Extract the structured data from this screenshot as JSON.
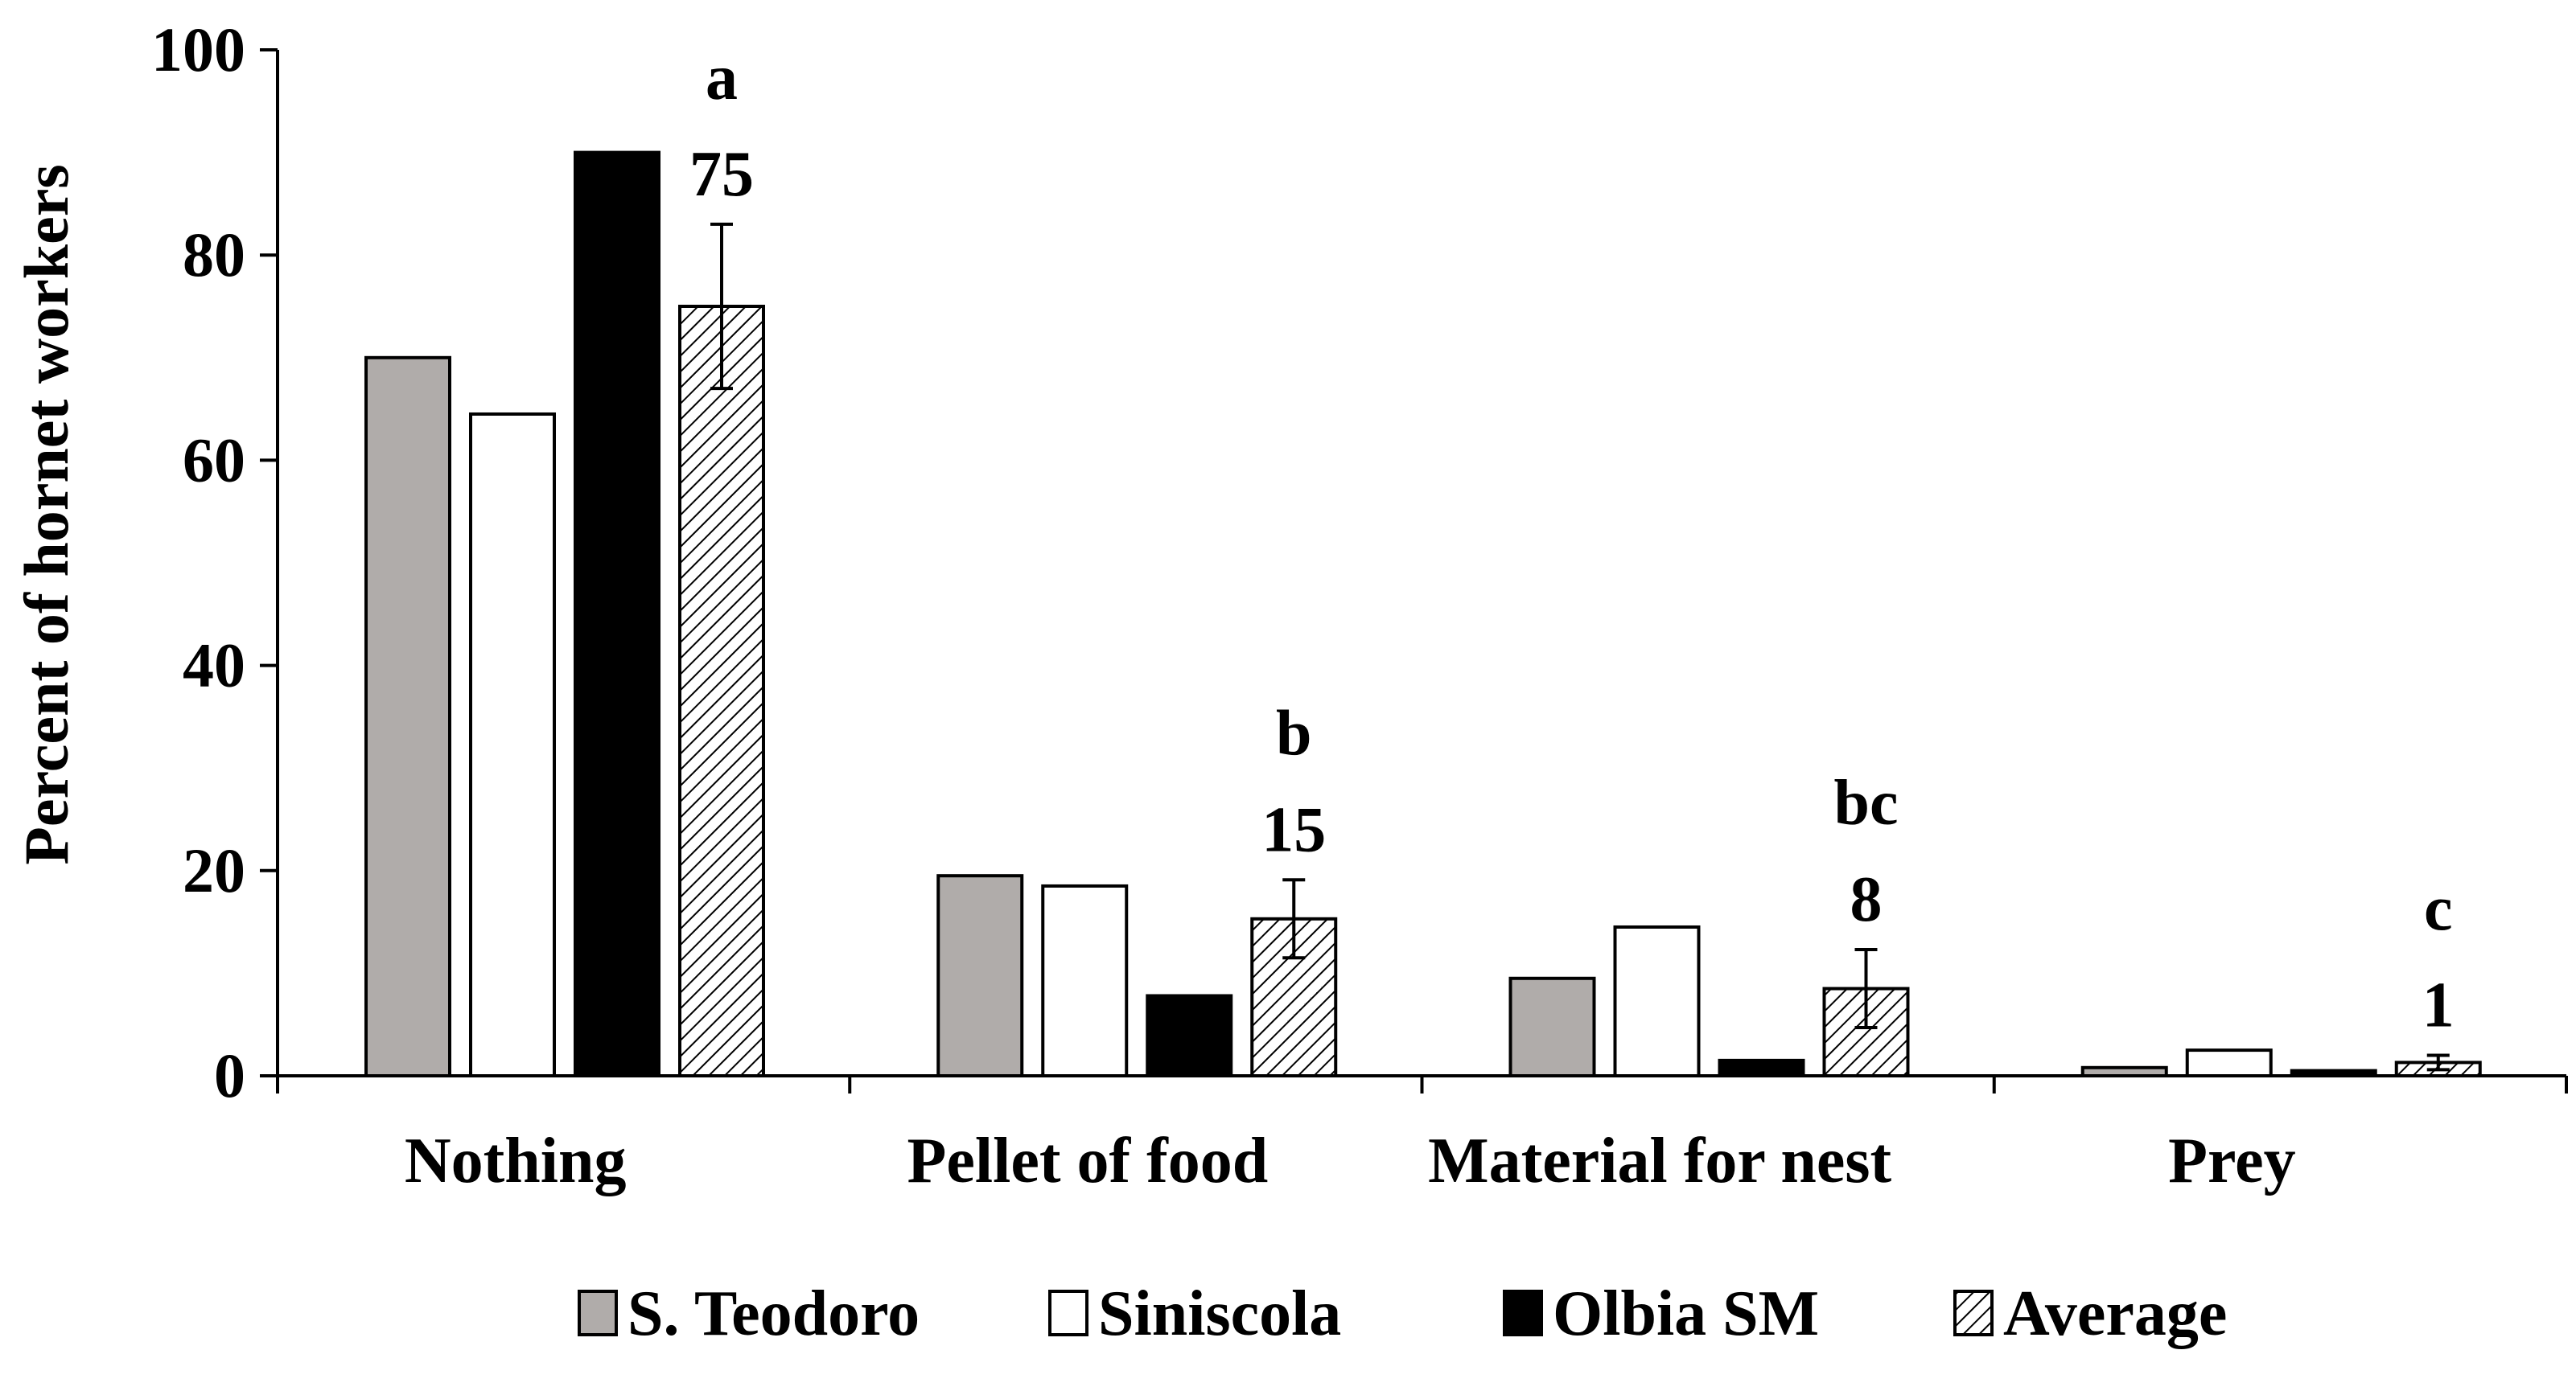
{
  "chart_data": {
    "type": "bar",
    "title": "",
    "xlabel": "",
    "ylabel": "Percent of hornet workers",
    "ylim": [
      0,
      100
    ],
    "yticks": [
      "0",
      "20",
      "40",
      "60",
      "80",
      "100"
    ],
    "grid": false,
    "legend_position": "bottom-center",
    "categories": [
      "Nothing",
      "Pellet of food",
      "Material for nest",
      "Prey"
    ],
    "series": [
      {
        "name": "S. Teodoro",
        "fill": "#b0acaa",
        "pattern": "solid",
        "values": [
          70,
          19.5,
          9.5,
          0.8
        ]
      },
      {
        "name": "Siniscola",
        "fill": "#ffffff",
        "pattern": "solid",
        "values": [
          64.5,
          18.5,
          14.5,
          2.5
        ]
      },
      {
        "name": "Olbia SM",
        "fill": "#000000",
        "pattern": "solid",
        "values": [
          90,
          7.8,
          1.5,
          0.5
        ]
      },
      {
        "name": "Average",
        "fill": "#ffffff",
        "pattern": "hatch",
        "values": [
          75,
          15.3,
          8.5,
          1.3
        ],
        "errors": [
          8,
          3.8,
          3.8,
          0.7
        ]
      }
    ],
    "annotations": [
      {
        "letter": "a",
        "value": "75"
      },
      {
        "letter": "b",
        "value": "15"
      },
      {
        "letter": "bc",
        "value": "8"
      },
      {
        "letter": "c",
        "value": "1"
      }
    ]
  }
}
